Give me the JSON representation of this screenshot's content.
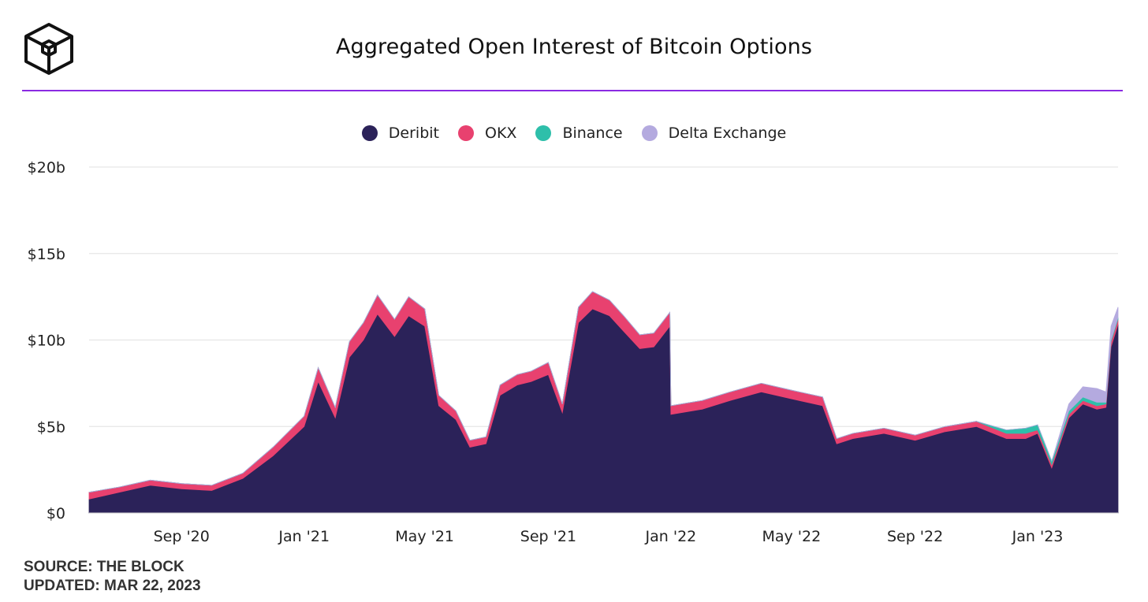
{
  "header": {
    "title": "Aggregated Open Interest of Bitcoin Options",
    "logo_icon": "cube-logo-icon",
    "rule_color": "#8a2be2"
  },
  "footer": {
    "source": "SOURCE: THE BLOCK",
    "updated": "UPDATED: MAR 22, 2023"
  },
  "chart_data": {
    "type": "area",
    "stacked": true,
    "title": "Aggregated Open Interest of Bitcoin Options",
    "xlabel": "",
    "ylabel": "",
    "ylim": [
      0,
      20
    ],
    "y_unit": "billion USD",
    "y_ticks": [
      0,
      5,
      10,
      15,
      20
    ],
    "y_tick_labels": [
      "$0",
      "$5b",
      "$10b",
      "$15b",
      "$20b"
    ],
    "x_ticks": [
      "2020-09",
      "2021-01",
      "2021-05",
      "2021-09",
      "2022-01",
      "2022-05",
      "2022-09",
      "2023-01"
    ],
    "x_tick_labels": [
      "Sep '20",
      "Jan '21",
      "May '21",
      "Sep '21",
      "Jan '22",
      "May '22",
      "Sep '22",
      "Jan '23"
    ],
    "xlim": [
      "2020-06-01",
      "2023-03-22"
    ],
    "grid": true,
    "legend_position": "top-center",
    "x": [
      "2020-06-01",
      "2020-07-01",
      "2020-08-01",
      "2020-09-01",
      "2020-10-01",
      "2020-11-01",
      "2020-12-01",
      "2021-01-01",
      "2021-01-15",
      "2021-02-01",
      "2021-02-15",
      "2021-03-01",
      "2021-03-15",
      "2021-04-01",
      "2021-04-15",
      "2021-05-01",
      "2021-05-15",
      "2021-06-01",
      "2021-06-15",
      "2021-07-01",
      "2021-07-15",
      "2021-08-01",
      "2021-08-15",
      "2021-09-01",
      "2021-09-15",
      "2021-10-01",
      "2021-10-15",
      "2021-11-01",
      "2021-11-15",
      "2021-12-01",
      "2021-12-15",
      "2021-12-31",
      "2022-01-01",
      "2022-02-01",
      "2022-03-01",
      "2022-04-01",
      "2022-05-01",
      "2022-06-01",
      "2022-06-15",
      "2022-07-01",
      "2022-08-01",
      "2022-09-01",
      "2022-10-01",
      "2022-11-01",
      "2022-12-01",
      "2022-12-20",
      "2023-01-01",
      "2023-01-15",
      "2023-02-01",
      "2023-02-15",
      "2023-03-01",
      "2023-03-10",
      "2023-03-15",
      "2023-03-22"
    ],
    "series": [
      {
        "name": "Deribit",
        "color": "#2b2259",
        "values": [
          0.8,
          1.2,
          1.6,
          1.4,
          1.3,
          2.0,
          3.3,
          5.0,
          7.6,
          5.5,
          9.0,
          10.0,
          11.5,
          10.2,
          11.4,
          10.8,
          6.2,
          5.4,
          3.8,
          4.0,
          6.8,
          7.4,
          7.6,
          8.0,
          5.8,
          11.0,
          11.8,
          11.4,
          10.5,
          9.5,
          9.6,
          10.8,
          5.7,
          6.0,
          6.5,
          7.0,
          6.6,
          6.2,
          4.0,
          4.3,
          4.6,
          4.2,
          4.7,
          5.0,
          4.3,
          4.3,
          4.6,
          2.6,
          5.5,
          6.3,
          6.0,
          6.1,
          9.6,
          10.9
        ]
      },
      {
        "name": "OKX",
        "color": "#e8416f",
        "values": [
          0.4,
          0.3,
          0.3,
          0.3,
          0.3,
          0.3,
          0.5,
          0.6,
          0.8,
          0.6,
          0.9,
          1.0,
          1.1,
          1.0,
          1.1,
          1.0,
          0.6,
          0.5,
          0.4,
          0.4,
          0.6,
          0.6,
          0.6,
          0.7,
          0.5,
          0.9,
          1.0,
          0.9,
          0.9,
          0.8,
          0.8,
          0.8,
          0.5,
          0.5,
          0.5,
          0.5,
          0.5,
          0.5,
          0.3,
          0.3,
          0.3,
          0.3,
          0.3,
          0.3,
          0.3,
          0.3,
          0.2,
          0.2,
          0.2,
          0.2,
          0.2,
          0.2,
          0.3,
          0.3
        ]
      },
      {
        "name": "Binance",
        "color": "#2ebfaa",
        "values": [
          0,
          0,
          0,
          0,
          0,
          0,
          0,
          0,
          0,
          0,
          0,
          0,
          0,
          0,
          0,
          0,
          0,
          0,
          0,
          0,
          0,
          0,
          0,
          0,
          0,
          0,
          0,
          0,
          0,
          0,
          0,
          0,
          0,
          0,
          0,
          0,
          0,
          0,
          0,
          0,
          0,
          0,
          0,
          0,
          0.2,
          0.3,
          0.3,
          0.2,
          0.2,
          0.2,
          0.2,
          0.1,
          0.1,
          0.1
        ]
      },
      {
        "name": "Delta Exchange",
        "color": "#b4aadf",
        "values": [
          0,
          0,
          0,
          0,
          0,
          0,
          0,
          0,
          0,
          0,
          0,
          0,
          0,
          0,
          0,
          0,
          0,
          0,
          0,
          0,
          0,
          0,
          0,
          0,
          0,
          0,
          0,
          0,
          0,
          0,
          0,
          0,
          0,
          0,
          0,
          0,
          0,
          0,
          0,
          0,
          0,
          0,
          0,
          0,
          0,
          0,
          0,
          0,
          0.4,
          0.6,
          0.8,
          0.6,
          0.8,
          0.6
        ]
      }
    ]
  }
}
